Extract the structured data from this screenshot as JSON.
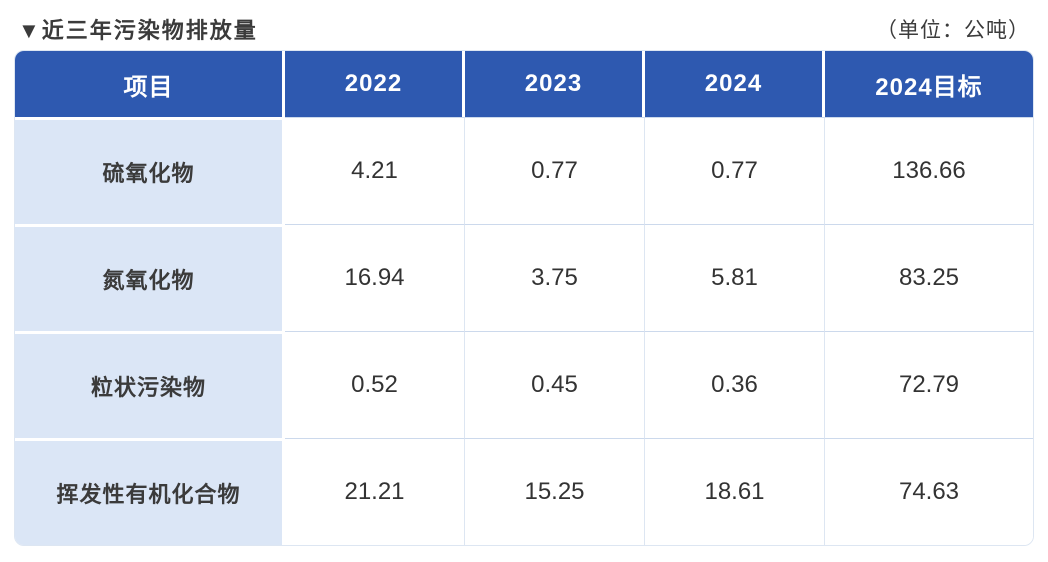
{
  "page": {
    "title": "▼近三年污染物排放量",
    "unit_label": "（单位：公吨）"
  },
  "colors": {
    "header_bg": "#2e59b0",
    "header_text": "#ffffff",
    "label_bg": "#dbe6f6",
    "grid_line": "#ccd9ec",
    "text_dark": "#3b3b3b"
  },
  "chart_data": {
    "type": "table",
    "title": "近三年污染物排放量",
    "unit": "公吨",
    "columns": [
      "项目",
      "2022",
      "2023",
      "2024",
      "2024目标"
    ],
    "rows": [
      {
        "label": "硫氧化物",
        "values": [
          "4.21",
          "0.77",
          "0.77",
          "136.66"
        ]
      },
      {
        "label": "氮氧化物",
        "values": [
          "16.94",
          "3.75",
          "5.81",
          "83.25"
        ]
      },
      {
        "label": "粒状污染物",
        "values": [
          "0.52",
          "0.45",
          "0.36",
          "72.79"
        ]
      },
      {
        "label": "挥发性有机化合物",
        "values": [
          "21.21",
          "15.25",
          "18.61",
          "74.63"
        ]
      }
    ]
  }
}
